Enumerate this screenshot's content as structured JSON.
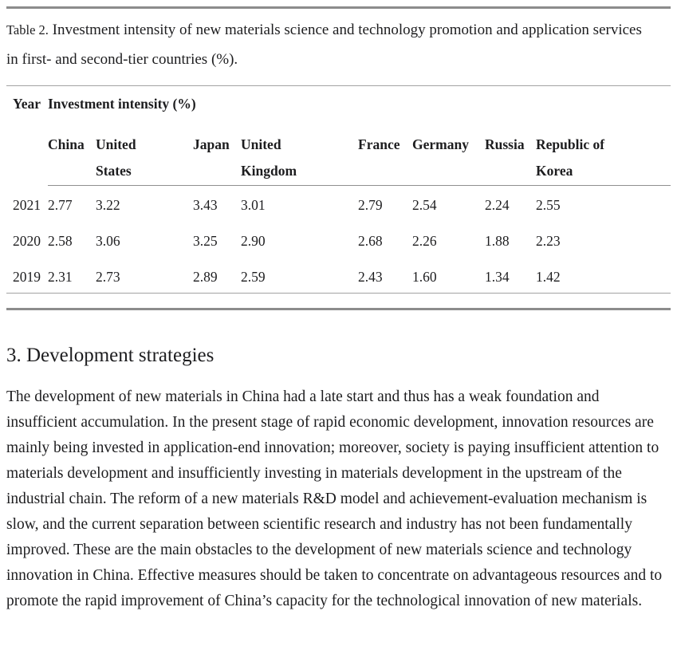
{
  "colors": {
    "background": "#ffffff",
    "text": "#1d1d1f",
    "rule_thick": "#8c8c8c",
    "rule_thin": "#a3a3a3"
  },
  "table": {
    "caption_label": "Table 2.",
    "caption_text": "Investment intensity of new materials science and technology promotion and application services in first- and second-tier countries (%).",
    "header": {
      "year": "Year",
      "group": "Investment intensity (%)"
    },
    "columns": [
      "China",
      "United\nStates",
      "Japan",
      "United\nKingdom",
      "France",
      "Germany",
      "Russia",
      "Republic of\nKorea"
    ],
    "rows": [
      {
        "year": "2021",
        "values": [
          "2.77",
          "3.22",
          "3.43",
          "3.01",
          "2.79",
          "2.54",
          "2.24",
          "2.55"
        ]
      },
      {
        "year": "2020",
        "values": [
          "2.58",
          "3.06",
          "3.25",
          "2.90",
          "2.68",
          "2.26",
          "1.88",
          "2.23"
        ]
      },
      {
        "year": "2019",
        "values": [
          "2.31",
          "2.73",
          "2.89",
          "2.59",
          "2.43",
          "1.60",
          "1.34",
          "1.42"
        ]
      }
    ]
  },
  "section": {
    "heading": "3. Development strategies",
    "paragraph": "The development of new materials in China had a late start and thus has a weak foundation and insufficient accumulation. In the present stage of rapid economic development, innovation resources are mainly being invested in application-end innovation; moreover, society is paying insufficient attention to materials development and insufficiently investing in materials development in the upstream of the industrial chain. The reform of a new materials R&D model and achievement-evaluation mechanism is slow, and the current separation between scientific research and industry has not been fundamentally improved. These are the main obstacles to the development of new materials science and technology innovation in China. Effective measures should be taken to concentrate on advantageous resources and to promote the rapid improvement of China’s capacity for the technological innovation of new materials."
  }
}
